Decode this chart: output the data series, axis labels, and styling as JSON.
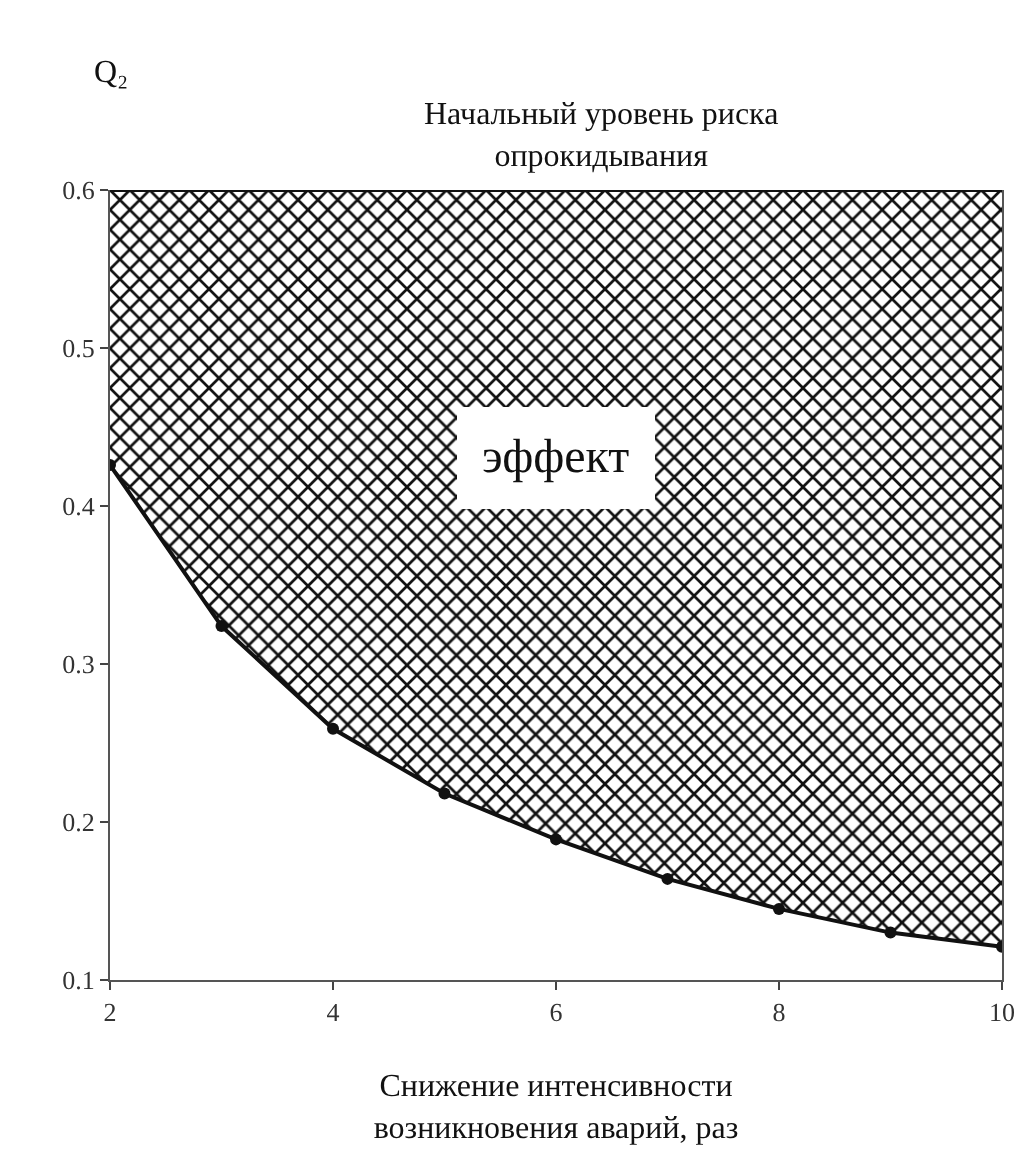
{
  "chart_data": {
    "type": "line",
    "xlabel": "Снижение интенсивности возникновения аварий, раз",
    "ylabel": "Q₂",
    "x": [
      2,
      3,
      4,
      5,
      6,
      7,
      8,
      9,
      10
    ],
    "series": [
      {
        "color": "#111111",
        "values": [
          0.426,
          0.324,
          0.259,
          0.218,
          0.189,
          0.164,
          0.145,
          0.13,
          0.121
        ],
        "lower": [
          0.426,
          0.324,
          0.259,
          0.218,
          0.189,
          0.164,
          0.145,
          0.13,
          0.121
        ],
        "upper": [
          0.6,
          0.6,
          0.6,
          0.6,
          0.6,
          0.6,
          0.6,
          0.6,
          0.6
        ]
      }
    ],
    "ref_lines": [
      {
        "axis": "y",
        "value": 0.6,
        "label": "Начальный уровень риска опрокидывания",
        "color": "#111111"
      }
    ],
    "annotations": [
      "эффект"
    ],
    "xlim": [
      2,
      10
    ],
    "xticks": [
      2,
      4,
      6,
      8,
      10
    ],
    "ylim": [
      0.1,
      0.6
    ],
    "yticks": [
      0.1,
      0.2,
      0.3,
      0.4,
      0.5,
      0.6
    ],
    "grid": false,
    "marker": "circle",
    "line_style": "solid"
  }
}
